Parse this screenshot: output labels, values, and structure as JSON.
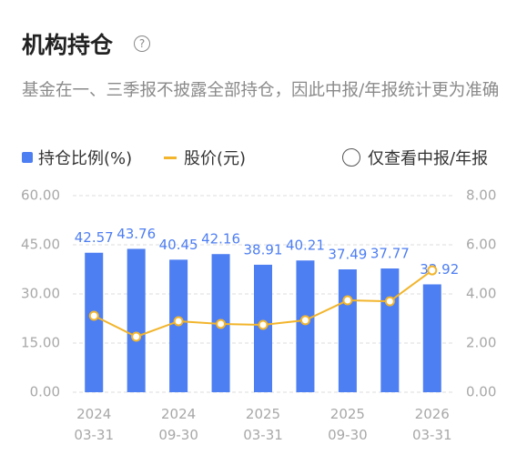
{
  "chart_data": {
    "type": "combo",
    "title": "机构持仓",
    "subtitle": "基金在一、三季报不披露全部持仓，因此中报/年报统计更为准确",
    "toggle_label": "仅查看中报/年报",
    "categories": [
      [
        "2024",
        "03-31"
      ],
      null,
      [
        "2024",
        "09-30"
      ],
      null,
      [
        "2025",
        "03-31"
      ],
      null,
      [
        "2025",
        "09-30"
      ],
      null,
      [
        "2026",
        "03-31"
      ]
    ],
    "series": [
      {
        "name": "持仓比例(%)",
        "type": "bar",
        "color": "#4d7ef2",
        "values": [
          42.57,
          43.76,
          40.45,
          42.16,
          38.91,
          40.21,
          37.49,
          37.77,
          32.92
        ]
      },
      {
        "name": "股价(元)",
        "type": "line",
        "axis": "y2",
        "color": "#f2b52c",
        "values": [
          3.11,
          2.26,
          2.89,
          2.78,
          2.74,
          2.93,
          3.74,
          3.7,
          4.96
        ]
      }
    ],
    "ylim": [
      0,
      60
    ],
    "yticks": [
      {
        "value": 0,
        "label": "0.00"
      },
      {
        "value": 15,
        "label": "15.00"
      },
      {
        "value": 30,
        "label": "30.00"
      },
      {
        "value": 45,
        "label": "45.00"
      },
      {
        "value": 60,
        "label": "60.00"
      }
    ],
    "y2lim": [
      0,
      8
    ],
    "y2ticks": [
      {
        "value": 0,
        "label": "0.00"
      },
      {
        "value": 2,
        "label": "2.00"
      },
      {
        "value": 4,
        "label": "4.00"
      },
      {
        "value": 6,
        "label": "6.00"
      },
      {
        "value": 8,
        "label": "8.00"
      }
    ],
    "grid": true
  }
}
